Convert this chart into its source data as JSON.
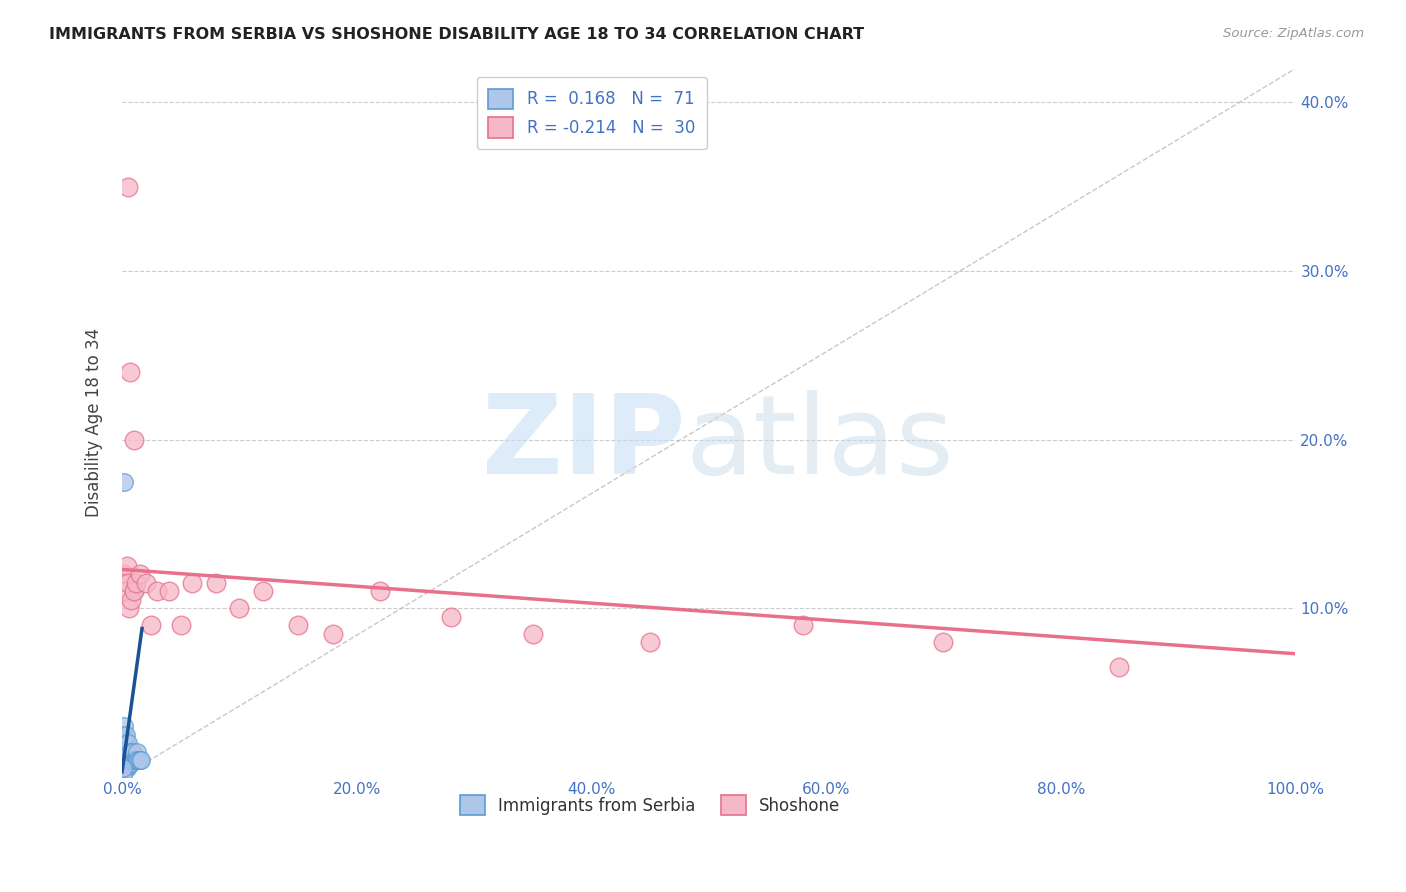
{
  "title": "IMMIGRANTS FROM SERBIA VS SHOSHONE DISABILITY AGE 18 TO 34 CORRELATION CHART",
  "source": "Source: ZipAtlas.com",
  "ylabel": "Disability Age 18 to 34",
  "xlim": [
    0.0,
    1.0
  ],
  "ylim": [
    0.0,
    0.42
  ],
  "xticks": [
    0.0,
    0.2,
    0.4,
    0.6,
    0.8,
    1.0
  ],
  "xticklabels": [
    "0.0%",
    "20.0%",
    "40.0%",
    "60.0%",
    "80.0%",
    "100.0%"
  ],
  "yticks": [
    0.1,
    0.2,
    0.3,
    0.4
  ],
  "yticklabels": [
    "10.0%",
    "20.0%",
    "30.0%",
    "40.0%"
  ],
  "serbia_color": "#aec6e8",
  "shoshone_color": "#f5b8c8",
  "serbia_edge_color": "#5b9bd5",
  "shoshone_edge_color": "#e8708a",
  "serbia_trend_color": "#1a5296",
  "shoshone_trend_color": "#e8708a",
  "diagonal_color": "#bbbbbb",
  "watermark_zip_color": "#c8dff5",
  "watermark_atlas_color": "#c8dce8",
  "serbia_x": [
    0.001,
    0.001,
    0.001,
    0.001,
    0.001,
    0.001,
    0.001,
    0.001,
    0.001,
    0.001,
    0.001,
    0.001,
    0.001,
    0.001,
    0.001,
    0.002,
    0.002,
    0.002,
    0.002,
    0.002,
    0.002,
    0.002,
    0.002,
    0.002,
    0.002,
    0.002,
    0.002,
    0.002,
    0.002,
    0.002,
    0.003,
    0.003,
    0.003,
    0.003,
    0.003,
    0.003,
    0.003,
    0.003,
    0.003,
    0.003,
    0.004,
    0.004,
    0.004,
    0.004,
    0.004,
    0.005,
    0.005,
    0.005,
    0.005,
    0.005,
    0.006,
    0.006,
    0.006,
    0.007,
    0.007,
    0.008,
    0.008,
    0.009,
    0.009,
    0.01,
    0.01,
    0.011,
    0.012,
    0.013,
    0.013,
    0.014,
    0.014,
    0.015,
    0.016,
    0.001,
    0.001
  ],
  "serbia_y": [
    0.005,
    0.007,
    0.008,
    0.01,
    0.01,
    0.01,
    0.01,
    0.01,
    0.012,
    0.013,
    0.015,
    0.015,
    0.015,
    0.02,
    0.025,
    0.005,
    0.007,
    0.008,
    0.009,
    0.01,
    0.01,
    0.01,
    0.012,
    0.013,
    0.015,
    0.02,
    0.02,
    0.025,
    0.03,
    0.175,
    0.005,
    0.007,
    0.008,
    0.01,
    0.01,
    0.012,
    0.013,
    0.015,
    0.02,
    0.025,
    0.005,
    0.007,
    0.01,
    0.013,
    0.015,
    0.007,
    0.008,
    0.01,
    0.013,
    0.02,
    0.007,
    0.01,
    0.013,
    0.008,
    0.015,
    0.008,
    0.01,
    0.01,
    0.015,
    0.01,
    0.11,
    0.01,
    0.01,
    0.01,
    0.015,
    0.01,
    0.01,
    0.01,
    0.01,
    0.0,
    0.005
  ],
  "shoshone_x": [
    0.002,
    0.003,
    0.004,
    0.005,
    0.006,
    0.008,
    0.01,
    0.012,
    0.015,
    0.02,
    0.025,
    0.03,
    0.04,
    0.05,
    0.06,
    0.08,
    0.1,
    0.12,
    0.15,
    0.18,
    0.22,
    0.28,
    0.35,
    0.45,
    0.58,
    0.7,
    0.85,
    0.005,
    0.007,
    0.01
  ],
  "shoshone_y": [
    0.12,
    0.11,
    0.125,
    0.115,
    0.1,
    0.105,
    0.11,
    0.115,
    0.12,
    0.115,
    0.09,
    0.11,
    0.11,
    0.09,
    0.115,
    0.115,
    0.1,
    0.11,
    0.09,
    0.085,
    0.11,
    0.095,
    0.085,
    0.08,
    0.09,
    0.08,
    0.065,
    0.35,
    0.24,
    0.2
  ],
  "serbia_trend_x": [
    0.0,
    0.017
  ],
  "serbia_trend_y_start": 0.003,
  "serbia_trend_y_end": 0.088,
  "shoshone_trend_x": [
    0.0,
    1.0
  ],
  "shoshone_trend_y_start": 0.123,
  "shoshone_trend_y_end": 0.073
}
